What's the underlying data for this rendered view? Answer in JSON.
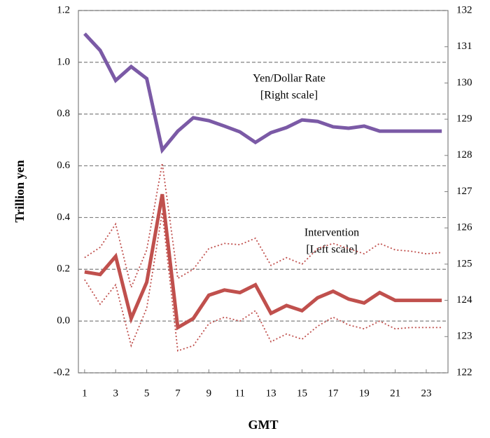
{
  "chart_data": {
    "type": "line",
    "x_label": "GMT",
    "y_label": "Trillion yen",
    "x": [
      1,
      2,
      3,
      4,
      5,
      6,
      7,
      8,
      9,
      10,
      11,
      12,
      13,
      14,
      15,
      16,
      17,
      18,
      19,
      20,
      21,
      22,
      23,
      24
    ],
    "xlim": [
      0.6,
      24.4
    ],
    "xticks": [
      1,
      3,
      5,
      7,
      9,
      11,
      13,
      15,
      17,
      19,
      21,
      23
    ],
    "ylim": [
      -0.2,
      1.2
    ],
    "yticks": [
      -0.2,
      {
        "value": 0,
        "label": "0.0"
      },
      0.2,
      0.4,
      0.6,
      0.8,
      {
        "value": 1,
        "label": "1.0"
      },
      1.2
    ],
    "y2lim": [
      122,
      132
    ],
    "y2ticks": [
      122,
      123,
      124,
      125,
      126,
      127,
      128,
      129,
      130,
      131,
      132
    ],
    "grid": true,
    "annotations": [
      "Yen/Dollar Rate",
      "[Right scale]",
      "Intervention",
      "[Left scale]"
    ],
    "series": [
      {
        "color": "#7b5aa6",
        "width": 5,
        "dash": "none",
        "axis": "y2",
        "values": [
          131.36,
          130.9,
          130.07,
          130.45,
          130.12,
          128.15,
          128.67,
          129.04,
          128.96,
          128.81,
          128.65,
          128.36,
          128.63,
          128.77,
          128.98,
          128.94,
          128.79,
          128.75,
          128.81,
          128.67,
          128.67,
          128.67,
          128.67,
          128.67
        ]
      },
      {
        "color": "#c0504d",
        "width": 1.8,
        "dash": "2 3",
        "axis": "y",
        "values": [
          0.245,
          0.285,
          0.375,
          0.13,
          0.275,
          0.61,
          0.165,
          0.2,
          0.28,
          0.3,
          0.295,
          0.32,
          0.215,
          0.245,
          0.22,
          0.28,
          0.3,
          0.28,
          0.26,
          0.3,
          0.275,
          0.27,
          0.26,
          0.265
        ]
      },
      {
        "color": "#c0504d",
        "width": 1.8,
        "dash": "2 3",
        "axis": "y",
        "values": [
          0.16,
          0.065,
          0.14,
          -0.095,
          0.05,
          0.42,
          -0.115,
          -0.095,
          -0.01,
          0.015,
          0,
          0.04,
          -0.08,
          -0.05,
          -0.07,
          -0.02,
          0.015,
          -0.015,
          -0.03,
          0,
          -0.03,
          -0.025,
          -0.025,
          -0.025
        ]
      },
      {
        "color": "#c0504d",
        "width": 5,
        "dash": "none",
        "axis": "y",
        "values": [
          0.19,
          0.18,
          0.25,
          0.01,
          0.15,
          0.49,
          -0.025,
          0.01,
          0.1,
          0.12,
          0.11,
          0.14,
          0.03,
          0.06,
          0.04,
          0.09,
          0.115,
          0.085,
          0.07,
          0.11,
          0.08,
          0.08,
          0.08,
          0.08
        ]
      }
    ]
  }
}
